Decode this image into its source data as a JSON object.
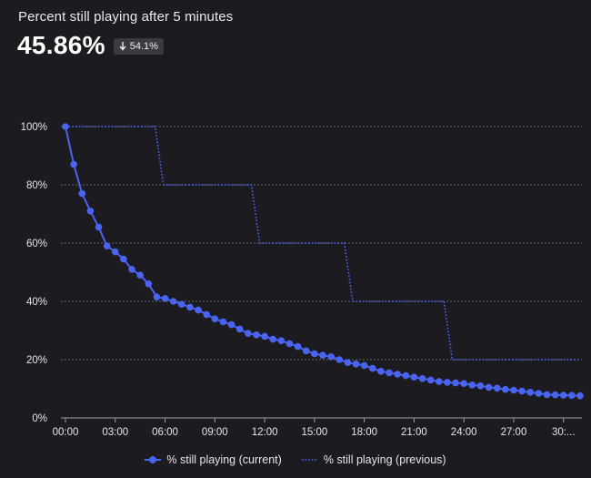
{
  "header": {
    "title": "Percent still playing after 5 minutes",
    "metric": "45.86%",
    "delta": "54.1%"
  },
  "colors": {
    "background": "#1c1c20",
    "current": "#4a63f0",
    "previous": "#4a63f0",
    "grid": "#7a7a80",
    "text": "#e6e6ea"
  },
  "chart_data": {
    "type": "line",
    "ylabel": "",
    "xlabel": "",
    "ylim": [
      0,
      100
    ],
    "xlim": [
      0,
      31
    ],
    "yticks": [
      {
        "value": 0,
        "label": "0%"
      },
      {
        "value": 20,
        "label": "20%"
      },
      {
        "value": 40,
        "label": "40%"
      },
      {
        "value": 60,
        "label": "60%"
      },
      {
        "value": 80,
        "label": "80%"
      },
      {
        "value": 100,
        "label": "100%"
      }
    ],
    "xticks": [
      {
        "value": 0,
        "label": "00:00"
      },
      {
        "value": 3,
        "label": "03:00"
      },
      {
        "value": 6,
        "label": "06:00"
      },
      {
        "value": 9,
        "label": "09:00"
      },
      {
        "value": 12,
        "label": "12:00"
      },
      {
        "value": 15,
        "label": "15:00"
      },
      {
        "value": 18,
        "label": "18:00"
      },
      {
        "value": 21,
        "label": "21:00"
      },
      {
        "value": 24,
        "label": "24:00"
      },
      {
        "value": 27,
        "label": "27:00"
      },
      {
        "value": 30,
        "label": "30:..."
      }
    ],
    "grid": true,
    "legend_position": "bottom-center",
    "series": [
      {
        "name": "% still playing (current)",
        "style": "solid-markers",
        "x": [
          0,
          0.5,
          1,
          1.5,
          2,
          2.5,
          3,
          3.5,
          4,
          4.5,
          5,
          5.5,
          6,
          6.5,
          7,
          7.5,
          8,
          8.5,
          9,
          9.5,
          10,
          10.5,
          11,
          11.5,
          12,
          12.5,
          13,
          13.5,
          14,
          14.5,
          15,
          15.5,
          16,
          16.5,
          17,
          17.5,
          18,
          18.5,
          19,
          19.5,
          20,
          20.5,
          21,
          21.5,
          22,
          22.5,
          23,
          23.5,
          24,
          24.5,
          25,
          25.5,
          26,
          26.5,
          27,
          27.5,
          28,
          28.5,
          29,
          29.5,
          30,
          30.5,
          31
        ],
        "y": [
          100,
          87,
          77,
          71,
          65.5,
          59,
          57,
          54.5,
          51,
          49,
          46,
          41.5,
          41,
          40,
          39,
          38,
          37,
          35.5,
          34,
          33,
          32,
          30.5,
          29,
          28.5,
          28,
          27,
          26.5,
          25.5,
          24.5,
          23,
          22,
          21.5,
          21,
          20,
          19,
          18.5,
          18,
          17,
          16,
          15.5,
          15,
          14.5,
          14,
          13.5,
          13,
          12.5,
          12.2,
          12,
          11.8,
          11.3,
          11,
          10.5,
          10.2,
          9.8,
          9.5,
          9.2,
          8.8,
          8.4,
          8,
          7.9,
          7.8,
          7.7,
          7.6
        ]
      },
      {
        "name": "% still playing (previous)",
        "style": "dotted",
        "x": [
          0,
          5.4,
          5.9,
          11.2,
          11.7,
          16.8,
          17.3,
          22.8,
          23.3,
          31
        ],
        "y": [
          100,
          100,
          80,
          80,
          60,
          60,
          40,
          40,
          20,
          20
        ]
      }
    ]
  }
}
